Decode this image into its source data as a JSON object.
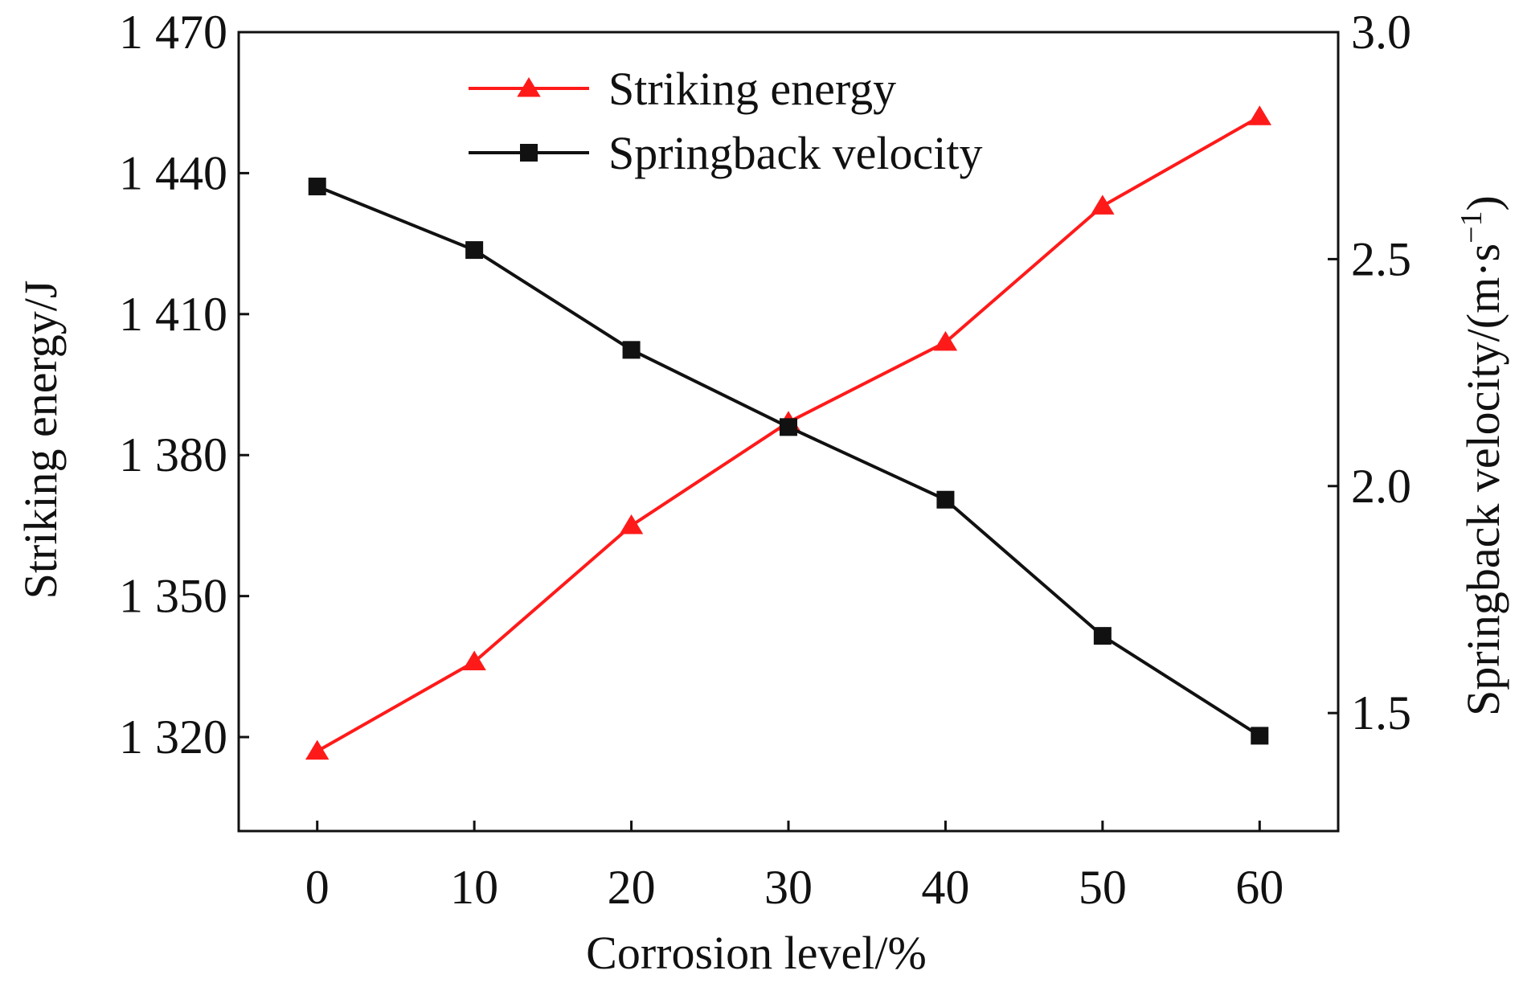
{
  "chart_data": {
    "type": "line",
    "title": "",
    "xlabel": "Corrosion level/%",
    "ylabel_left": "Striking energy/J",
    "ylabel_right_main": "Springback velocity/(m·s",
    "ylabel_right_sup": "−1",
    "ylabel_right_close": ")",
    "x": [
      0,
      10,
      20,
      30,
      40,
      50,
      60
    ],
    "x_ticks": [
      0,
      10,
      20,
      30,
      40,
      50,
      60
    ],
    "x_tick_labels": [
      "0",
      "10",
      "20",
      "30",
      "40",
      "50",
      "60"
    ],
    "xlim": [
      -5,
      65
    ],
    "y_left_ticks": [
      1320,
      1350,
      1380,
      1410,
      1440,
      1470
    ],
    "y_left_tick_labels": [
      "1 320",
      "1 350",
      "1 380",
      "1 410",
      "1 440",
      "1 470"
    ],
    "ylim_left": [
      1300,
      1470
    ],
    "y_right_ticks": [
      1.5,
      2.0,
      2.5,
      3.0
    ],
    "y_right_tick_labels": [
      "1.5",
      "2.0",
      "2.5",
      "3.0"
    ],
    "ylim_right": [
      1.24,
      3.0
    ],
    "grid": false,
    "legend_position": "top-center",
    "series": [
      {
        "name": "Striking energy",
        "axis": "left",
        "color": "#ff1a1a",
        "marker": "triangle",
        "values": [
          1317,
          1336,
          1365,
          1387,
          1404,
          1433,
          1452
        ]
      },
      {
        "name": "Springback velocity",
        "axis": "right",
        "color": "#111111",
        "marker": "square",
        "values": [
          2.66,
          2.52,
          2.3,
          2.13,
          1.97,
          1.67,
          1.45
        ]
      }
    ]
  }
}
